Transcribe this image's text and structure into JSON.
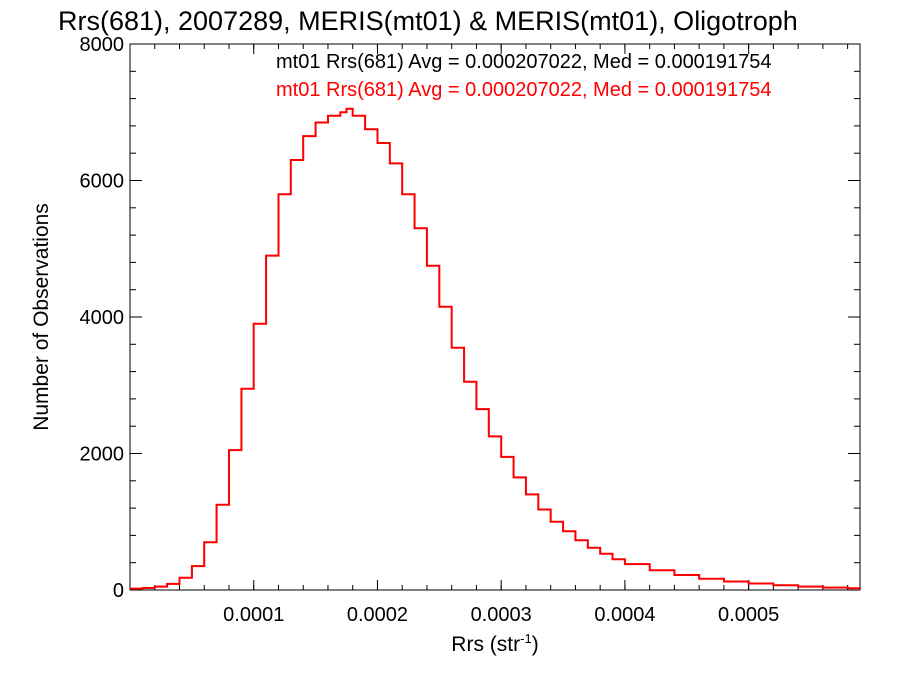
{
  "chart_data": {
    "type": "line",
    "title": "Rrs(681), 2007289, MERIS(mt01) & MERIS(mt01), Oligotroph",
    "xlabel": "Rrs (str",
    "xlabel_sup": "-1",
    "xlabel_end": ")",
    "ylabel": "Number of Observations",
    "xlim": [
      0.0,
      0.00059
    ],
    "ylim": [
      0,
      8000
    ],
    "x_ticks": [
      0.0001,
      0.0002,
      0.0003,
      0.0004,
      0.0005
    ],
    "x_tick_labels": [
      "0.0001",
      "0.0002",
      "0.0003",
      "0.0004",
      "0.0005"
    ],
    "y_ticks": [
      0,
      2000,
      4000,
      6000,
      8000
    ],
    "y_tick_labels": [
      "0",
      "2000",
      "4000",
      "6000",
      "8000"
    ],
    "legend_placement": "top-right",
    "series": [
      {
        "label": "mt01 Rrs(681) Avg = 0.000207022, Med = 0.000191754",
        "color": "#000000",
        "x": [
          0.0,
          1e-05,
          2e-05,
          3e-05,
          4e-05,
          5e-05,
          6e-05,
          7e-05,
          8e-05,
          9e-05,
          0.0001,
          0.00011,
          0.00012,
          0.00013,
          0.00014,
          0.00015,
          0.00016,
          0.00017,
          0.000175,
          0.00018,
          0.00019,
          0.0002,
          0.00021,
          0.00022,
          0.00023,
          0.00024,
          0.00025,
          0.00026,
          0.00027,
          0.00028,
          0.00029,
          0.0003,
          0.00031,
          0.00032,
          0.00033,
          0.00034,
          0.00035,
          0.00036,
          0.00037,
          0.00038,
          0.00039,
          0.0004,
          0.00042,
          0.00044,
          0.00046,
          0.00048,
          0.0005,
          0.00052,
          0.00054,
          0.00056,
          0.00058,
          0.00059
        ],
        "y": [
          20,
          30,
          50,
          90,
          180,
          350,
          700,
          1250,
          2050,
          2950,
          3900,
          4900,
          5800,
          6300,
          6650,
          6850,
          6950,
          7000,
          7050,
          6950,
          6750,
          6550,
          6250,
          5800,
          5300,
          4750,
          4150,
          3550,
          3050,
          2650,
          2250,
          1950,
          1650,
          1400,
          1180,
          1000,
          860,
          730,
          620,
          530,
          450,
          380,
          290,
          220,
          165,
          125,
          95,
          70,
          50,
          35,
          25,
          20
        ]
      },
      {
        "label": "mt01 Rrs(681) Avg = 0.000207022, Med = 0.000191754",
        "color": "#ff0000",
        "x": [
          0.0,
          1e-05,
          2e-05,
          3e-05,
          4e-05,
          5e-05,
          6e-05,
          7e-05,
          8e-05,
          9e-05,
          0.0001,
          0.00011,
          0.00012,
          0.00013,
          0.00014,
          0.00015,
          0.00016,
          0.00017,
          0.000175,
          0.00018,
          0.00019,
          0.0002,
          0.00021,
          0.00022,
          0.00023,
          0.00024,
          0.00025,
          0.00026,
          0.00027,
          0.00028,
          0.00029,
          0.0003,
          0.00031,
          0.00032,
          0.00033,
          0.00034,
          0.00035,
          0.00036,
          0.00037,
          0.00038,
          0.00039,
          0.0004,
          0.00042,
          0.00044,
          0.00046,
          0.00048,
          0.0005,
          0.00052,
          0.00054,
          0.00056,
          0.00058,
          0.00059
        ],
        "y": [
          20,
          30,
          50,
          90,
          180,
          350,
          700,
          1250,
          2050,
          2950,
          3900,
          4900,
          5800,
          6300,
          6650,
          6850,
          6950,
          7000,
          7050,
          6950,
          6750,
          6550,
          6250,
          5800,
          5300,
          4750,
          4150,
          3550,
          3050,
          2650,
          2250,
          1950,
          1650,
          1400,
          1180,
          1000,
          860,
          730,
          620,
          530,
          450,
          380,
          290,
          220,
          165,
          125,
          95,
          70,
          50,
          35,
          25,
          20
        ]
      }
    ]
  }
}
